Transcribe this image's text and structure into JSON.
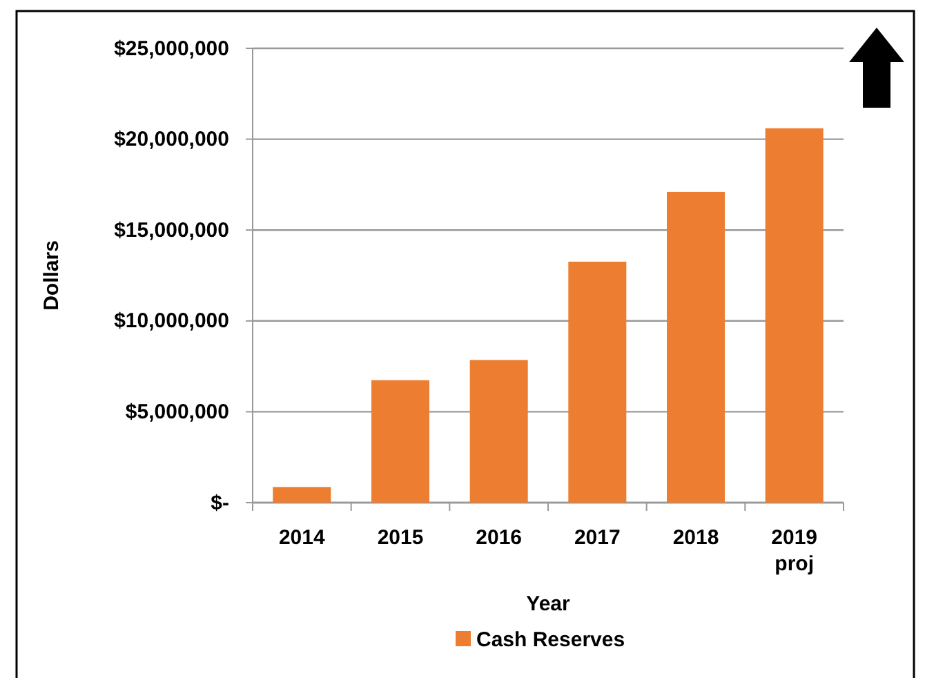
{
  "chart_data": {
    "type": "bar",
    "xlabel": "Year",
    "ylabel": "Dollars",
    "categories": [
      "2014",
      "2015",
      "2016",
      "2017",
      "2018",
      "2019 proj"
    ],
    "series": [
      {
        "name": "Cash Reserves",
        "color": "#ed7d31",
        "values": [
          860000,
          6740000,
          7850000,
          13260000,
          17100000,
          20600000
        ]
      }
    ],
    "ylim": [
      0,
      25000000
    ],
    "yticks": [
      {
        "value": 0,
        "label": "$-"
      },
      {
        "value": 5000000,
        "label": "$5,000,000"
      },
      {
        "value": 10000000,
        "label": "$10,000,000"
      },
      {
        "value": 15000000,
        "label": "$15,000,000"
      },
      {
        "value": 20000000,
        "label": "$20,000,000"
      },
      {
        "value": 25000000,
        "label": "$25,000,000"
      }
    ],
    "grid": "y",
    "legend": "bottom"
  }
}
